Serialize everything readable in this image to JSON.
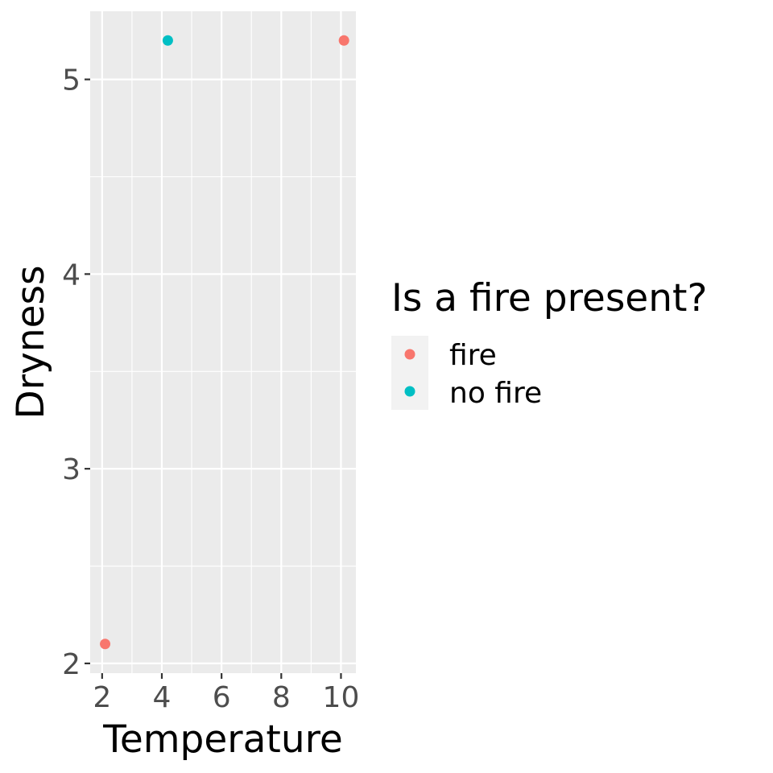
{
  "chart_data": {
    "type": "scatter",
    "xlabel": "Temperature",
    "ylabel": "Dryness",
    "xlim": [
      1.6,
      10.5
    ],
    "ylim": [
      1.95,
      5.35
    ],
    "xticks": [
      2,
      4,
      6,
      8,
      10
    ],
    "yticks": [
      2,
      3,
      4,
      5
    ],
    "xtick_labels": [
      "2",
      "4",
      "6",
      "8",
      "10"
    ],
    "ytick_labels": [
      "2",
      "3",
      "4",
      "5"
    ],
    "grid": true,
    "legend": {
      "title": "Is a fire present?",
      "placement": "right",
      "entries": [
        {
          "label": "fire",
          "color": "#F8766D"
        },
        {
          "label": "no fire",
          "color": "#00BFC4"
        }
      ]
    },
    "series": [
      {
        "name": "fire",
        "color": "#F8766D",
        "points": [
          {
            "x": 2.1,
            "y": 2.1
          },
          {
            "x": 10.1,
            "y": 5.2
          }
        ]
      },
      {
        "name": "no fire",
        "color": "#00BFC4",
        "points": [
          {
            "x": 4.2,
            "y": 5.2
          }
        ]
      }
    ]
  }
}
